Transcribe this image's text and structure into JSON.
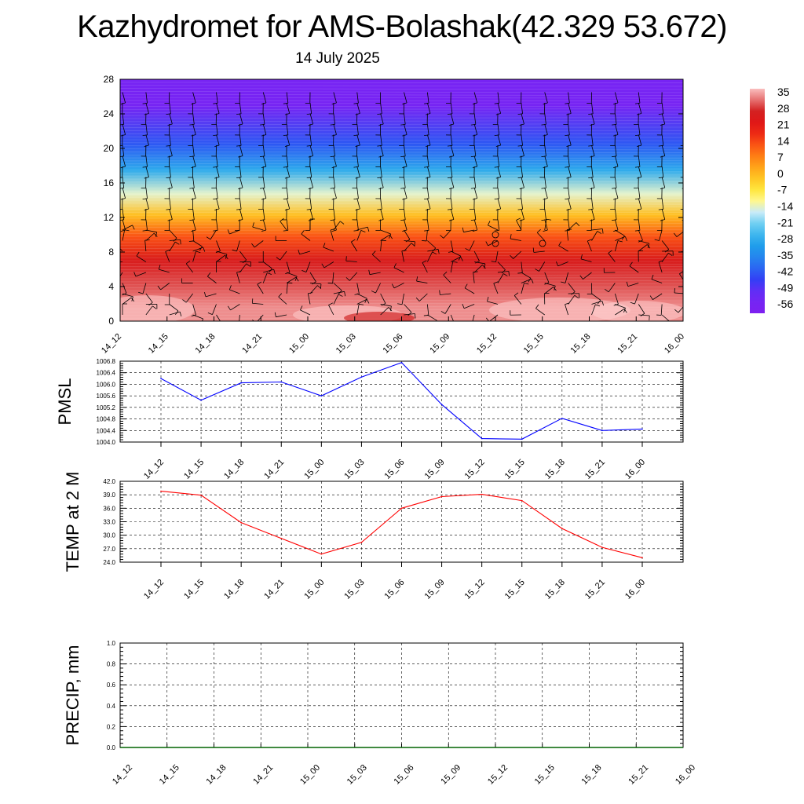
{
  "title": "Kazhydromet for AMS-Bolashak(42.329 53.672)",
  "subtitle": "14 July 2025",
  "colors": {
    "pressure_line": "#0000ff",
    "temp_line": "#ff0000",
    "precip_line": "#006400"
  },
  "chart_data": [
    {
      "type": "heatmap",
      "name": "temperature-cross-section",
      "x_tick_labels": [
        "14_12",
        "14_15",
        "14_18",
        "14_21",
        "15_00",
        "15_03",
        "15_06",
        "15_09",
        "15_12",
        "15_15",
        "15_18",
        "15_21",
        "16_00"
      ],
      "y_tick_labels": [
        "0",
        "4",
        "8",
        "12",
        "16",
        "20",
        "24",
        "28"
      ],
      "ylim": [
        0,
        28
      ],
      "bands": [
        {
          "from": 0,
          "to": 3,
          "value": 35
        },
        {
          "from": 3,
          "to": 5.5,
          "value": 31
        },
        {
          "from": 5.5,
          "to": 8.5,
          "value": 26
        },
        {
          "from": 8.5,
          "to": 11,
          "value": 14
        },
        {
          "from": 11,
          "to": 13.5,
          "value": 0
        },
        {
          "from": 13.5,
          "to": 16,
          "value": -14
        },
        {
          "from": 16,
          "to": 19,
          "value": -28
        },
        {
          "from": 19,
          "to": 22,
          "value": -42
        },
        {
          "from": 22,
          "to": 28,
          "value": -56
        }
      ],
      "colorbar": {
        "labels": [
          "35",
          "28",
          "21",
          "14",
          "7",
          "0",
          "-7",
          "-14",
          "-21",
          "-28",
          "-35",
          "-42",
          "-49",
          "-56"
        ],
        "range": [
          -60,
          38
        ]
      }
    },
    {
      "type": "line",
      "name": "pmsl",
      "ylabel": "PMSL",
      "categories": [
        "14_12",
        "14_15",
        "14_18",
        "14_21",
        "15_00",
        "15_03",
        "15_06",
        "15_09",
        "15_12",
        "15_15",
        "15_18",
        "15_21",
        "16_00"
      ],
      "y_tick_labels": [
        "1004.0",
        "1004.4",
        "1004.8",
        "1005.2",
        "1005.6",
        "1006.0",
        "1006.4",
        "1006.8"
      ],
      "ylim": [
        1004.0,
        1006.8
      ],
      "values": [
        1006.2,
        1005.45,
        1006.05,
        1006.08,
        1005.6,
        1006.25,
        1006.75,
        1005.3,
        1004.12,
        1004.1,
        1004.82,
        1004.4,
        1004.45
      ]
    },
    {
      "type": "line",
      "name": "temp-2m",
      "ylabel": "TEMP at 2 M",
      "categories": [
        "14_12",
        "14_15",
        "14_18",
        "14_21",
        "15_00",
        "15_03",
        "15_06",
        "15_09",
        "15_12",
        "15_15",
        "15_18",
        "15_21",
        "16_00"
      ],
      "y_tick_labels": [
        "24.0",
        "27.0",
        "30.0",
        "33.0",
        "36.0",
        "39.0",
        "42.0"
      ],
      "ylim": [
        24.0,
        42.0
      ],
      "values": [
        39.8,
        38.9,
        32.8,
        29.3,
        25.8,
        28.4,
        36.0,
        38.6,
        39.1,
        37.7,
        31.5,
        27.3,
        25.0
      ]
    },
    {
      "type": "line",
      "name": "precip",
      "ylabel": "PRECIP, mm",
      "categories": [
        "14_12",
        "14_15",
        "14_18",
        "14_21",
        "15_00",
        "15_03",
        "15_06",
        "15_09",
        "15_12",
        "15_15",
        "15_18",
        "15_21",
        "16_00"
      ],
      "y_tick_labels": [
        "0.0",
        "0.2",
        "0.4",
        "0.6",
        "0.8",
        "1.0"
      ],
      "ylim": [
        0.0,
        1.0
      ],
      "values": [
        0,
        0,
        0,
        0,
        0,
        0,
        0,
        0,
        0,
        0,
        0,
        0,
        0
      ]
    }
  ]
}
